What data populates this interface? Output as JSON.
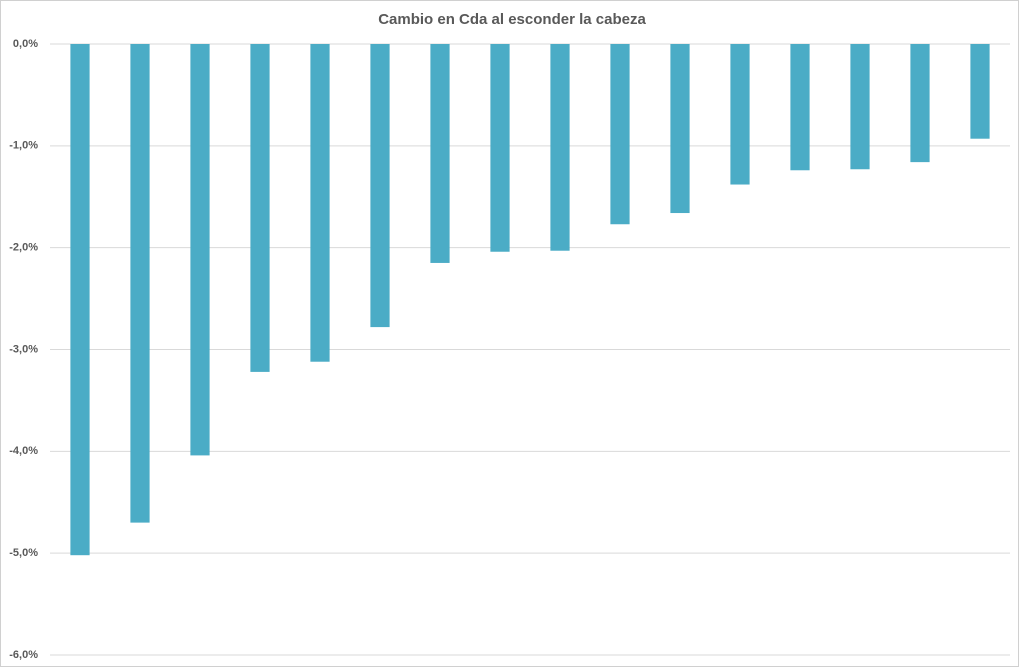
{
  "chart_data": {
    "type": "bar",
    "title": "Cambio en Cda al esconder la cabeza",
    "categories": [
      null,
      null,
      null,
      null,
      null,
      null,
      null,
      null,
      null,
      null,
      null,
      null,
      null,
      null,
      null,
      null
    ],
    "values": [
      -5.02,
      -4.7,
      -4.04,
      -3.22,
      -3.12,
      -2.78,
      -2.15,
      -2.04,
      -2.03,
      -1.77,
      -1.66,
      -1.38,
      -1.24,
      -1.23,
      -1.16,
      -0.93
    ],
    "color": "#4bacc6",
    "ylim": [
      -6,
      0
    ],
    "yticks": [
      {
        "value": 0,
        "label": "0,0%"
      },
      {
        "value": -1,
        "label": "-1,0%"
      },
      {
        "value": -2,
        "label": "-2,0%"
      },
      {
        "value": -3,
        "label": "-3,0%"
      },
      {
        "value": -4,
        "label": "-4,0%"
      },
      {
        "value": -5,
        "label": "-5,0%"
      },
      {
        "value": -6,
        "label": "-6,0%"
      }
    ],
    "grid": true
  }
}
